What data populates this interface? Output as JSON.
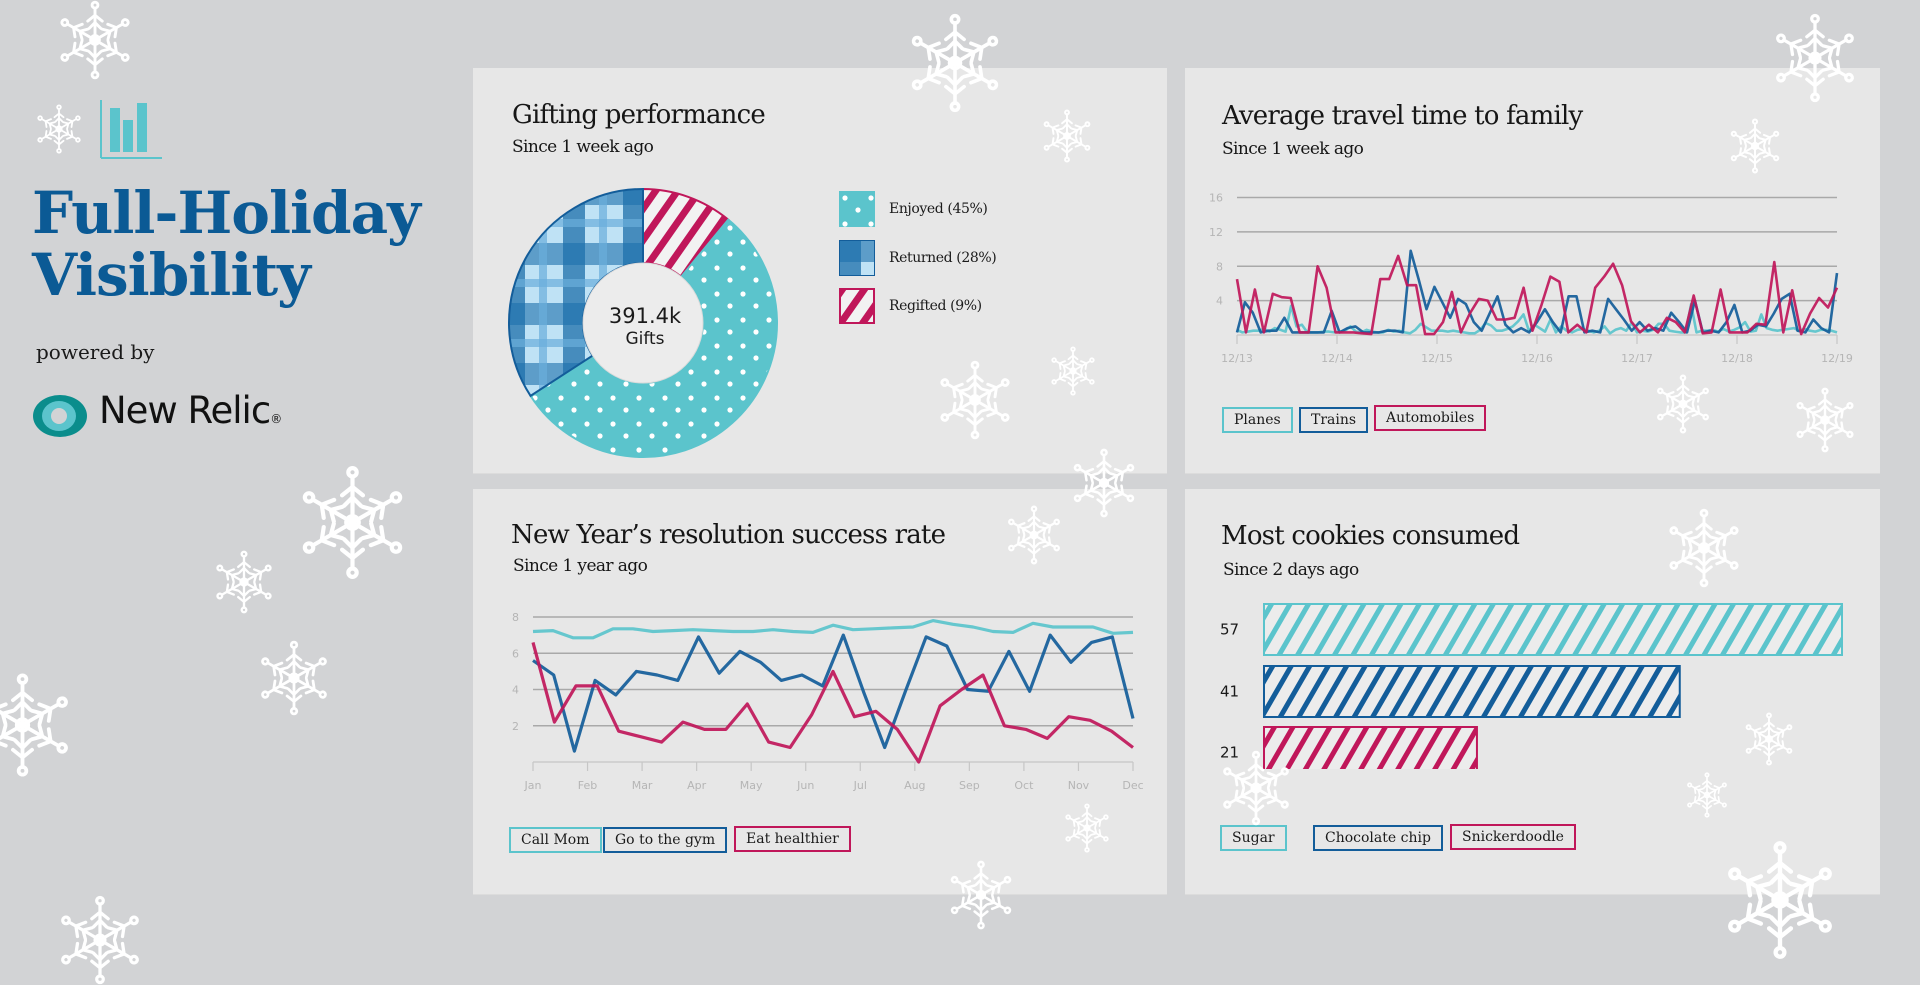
{
  "brand": {
    "title_line1": "Full-Holiday",
    "title_line2": "Visibility",
    "powered_by": "powered by",
    "logo_text": "New Relic",
    "logo_mark": "®",
    "colors": {
      "primary": "#0b5a95",
      "teal": "#5bc4cc",
      "blue": "#135d9a",
      "red": "#c0175a"
    }
  },
  "panels": {
    "gifting": {
      "title": "Gifting performance",
      "subtitle": "Since 1 week ago",
      "center_value": "391.4k",
      "center_label": "Gifts",
      "legend": [
        {
          "label": "Enjoyed (45%)",
          "color": "#5bc4cc",
          "pattern": "polka-dots"
        },
        {
          "label": "Returned (28%)",
          "color": "#135d9a",
          "pattern": "plaid"
        },
        {
          "label": "Regifted (9%)",
          "color": "#c0175a",
          "pattern": "stripes"
        }
      ]
    },
    "travel": {
      "title": "Average travel time to family",
      "subtitle": "Since 1 week ago",
      "legend": [
        "Planes",
        "Trains",
        "Automobiles"
      ]
    },
    "resolutions": {
      "title": "New Year’s resolution success rate",
      "subtitle": "Since 1 year ago",
      "legend": [
        "Call Mom",
        "Go to the gym",
        "Eat healthier"
      ]
    },
    "cookies": {
      "title": "Most cookies consumed",
      "subtitle": "Since 2 days ago",
      "legend": [
        "Sugar",
        "Chocolate chip",
        "Snickerdoodle"
      ]
    }
  },
  "chart_data": [
    {
      "type": "pie",
      "title": "Gifting performance",
      "subtitle": "Since 1 week ago",
      "categories": [
        "Enjoyed",
        "Returned",
        "Regifted"
      ],
      "values": [
        45,
        28,
        9
      ],
      "unit": "%",
      "center_text": "391.4k Gifts",
      "legend_position": "right"
    },
    {
      "type": "line",
      "title": "Average travel time to family",
      "subtitle": "Since 1 week ago",
      "x_ticks": [
        "12/13",
        "12/14",
        "12/15",
        "12/16",
        "12/17",
        "12/18",
        "12/19"
      ],
      "y_ticks": [
        4,
        8,
        12,
        16
      ],
      "ylim": [
        0,
        16
      ],
      "grid": true,
      "legend_position": "bottom-left",
      "series": [
        {
          "name": "Planes",
          "color": "#5bc4cc",
          "values": [
            0.6,
            0.3,
            0.4,
            0.5,
            0.5,
            0.7,
            0.4,
            0.8,
            0.6,
            0.4,
            3.4,
            1.0,
            1.2,
            0.3,
            0.3,
            0.3,
            0.4,
            0.4,
            0.3,
            0.4,
            0.5,
            1.0,
            0.4,
            0.3,
            0.6,
            0.4,
            0.3,
            0.3,
            0.6,
            0.4,
            0.5,
            0.3,
            0.2,
            0.6,
            1.3,
            0.9,
            0.5,
            0.5,
            0.5,
            0.4,
            0.5,
            0.4,
            0.3,
            0.2,
            0.2,
            0.6,
            1.4,
            1.1,
            0.5,
            0.5,
            0.7,
            1.0,
            1.6,
            2.4,
            0.5,
            1.2,
            0.8,
            0.4,
            1.8,
            0.3,
            1.0,
            0.5,
            0.3,
            0.6,
            0.7,
            0.5,
            0.3,
            0.5,
            1.0,
            0.2,
            0.6,
            0.8,
            0.5,
            1.4,
            0.3,
            0.5,
            0.4,
            0.6,
            1.3,
            1.3,
            0.5,
            0.4,
            0.3,
            0.3,
            3.6,
            0.3,
            0.5,
            0.5,
            0.6,
            0.4,
            0.7,
            0.4,
            0.6,
            0.9,
            1.5,
            0.4,
            0.5,
            2.4,
            0.8,
            0.6,
            0.5,
            0.6,
            0.7,
            0.8,
            0.5,
            0.7,
            0.5,
            0.4,
            0.6,
            0.6,
            0.5,
            0.3
          ]
        },
        {
          "name": "Trains",
          "color": "#135d9a",
          "values": [
            0.3,
            3.8,
            2.6,
            0.3,
            0.5,
            0.5,
            2.0,
            0.3,
            0.3,
            0.3,
            0.3,
            0.3,
            2.8,
            0.3,
            0.8,
            1.0,
            0.3,
            0.3,
            0.3,
            0.5,
            0.5,
            0.3,
            9.8,
            6.5,
            3.0,
            5.6,
            3.8,
            2.0,
            4.2,
            3.6,
            1.5,
            0.5,
            2.5,
            4.5,
            1.2,
            0.3,
            0.8,
            0.3,
            1.5,
            3.0,
            1.5,
            0.3,
            4.5,
            4.5,
            0.3,
            0.5,
            0.3,
            4.2,
            3.0,
            1.8,
            0.5,
            1.5,
            0.5,
            0.8,
            0.5,
            2.6,
            1.5,
            0.3,
            4.0,
            0.3,
            0.5,
            0.3,
            1.5,
            3.5,
            0.3,
            0.5,
            1.2,
            1.0,
            2.5,
            4.2,
            4.8,
            0.5,
            0.3,
            1.8,
            0.8,
            0.3,
            7.2
          ]
        },
        {
          "name": "Automobiles",
          "color": "#c0175a",
          "values": [
            6.5,
            0.3,
            5.3,
            0.3,
            4.8,
            4.4,
            4.3,
            0.3,
            0.3,
            8.0,
            5.5,
            0.3,
            0.3,
            0.3,
            0.2,
            0.1,
            6.5,
            6.5,
            9.2,
            5.8,
            5.8,
            0.1,
            0.1,
            1.5,
            5.0,
            0.3,
            2.5,
            4.2,
            4.0,
            1.8,
            1.8,
            2.0,
            5.5,
            0.5,
            3.5,
            6.8,
            6.2,
            0.3,
            1.2,
            0.3,
            5.5,
            6.8,
            8.3,
            5.8,
            1.6,
            0.3,
            1.2,
            0.3,
            2.0,
            1.5,
            0.3,
            4.6,
            0.2,
            0.3,
            5.3,
            0.3,
            0.3,
            0.3,
            1.3,
            1.2,
            8.5,
            0.3,
            5.2,
            0.1,
            2.5,
            4.3,
            3.2,
            5.5
          ]
        }
      ]
    },
    {
      "type": "line",
      "title": "New Year’s resolution success rate",
      "subtitle": "Since 1 year ago",
      "x_ticks": [
        "Jan",
        "Feb",
        "Mar",
        "Apr",
        "May",
        "Jun",
        "Jul",
        "Aug",
        "Sep",
        "Oct",
        "Nov",
        "Dec"
      ],
      "y_ticks": [
        2,
        4,
        6,
        8
      ],
      "ylim": [
        0,
        8
      ],
      "grid": true,
      "legend_position": "bottom-left",
      "series": [
        {
          "name": "Call Mom",
          "color": "#5bc4cc",
          "values": [
            7.2,
            7.25,
            6.85,
            6.85,
            7.35,
            7.35,
            7.2,
            7.25,
            7.3,
            7.25,
            7.2,
            7.2,
            7.3,
            7.2,
            7.15,
            7.55,
            7.3,
            7.35,
            7.4,
            7.45,
            7.8,
            7.6,
            7.45,
            7.2,
            7.15,
            7.65,
            7.45,
            7.45,
            7.45,
            7.1,
            7.15
          ]
        },
        {
          "name": "Go to the gym",
          "color": "#135d9a",
          "values": [
            5.6,
            4.8,
            0.6,
            4.5,
            3.7,
            5.0,
            4.8,
            4.5,
            6.9,
            4.9,
            6.1,
            5.5,
            4.5,
            4.8,
            4.2,
            7.0,
            3.8,
            0.8,
            3.9,
            6.9,
            6.4,
            4.0,
            3.9,
            6.1,
            3.9,
            7.0,
            5.5,
            6.6,
            6.9,
            2.4
          ]
        },
        {
          "name": "Eat healthier",
          "color": "#c0175a",
          "values": [
            6.6,
            2.2,
            4.2,
            4.2,
            1.7,
            1.4,
            1.1,
            2.2,
            1.8,
            1.8,
            3.2,
            1.1,
            0.8,
            2.6,
            5.0,
            2.5,
            2.8,
            1.8,
            0.0,
            3.1,
            4.0,
            4.8,
            2.0,
            1.8,
            1.3,
            2.5,
            2.3,
            1.7,
            0.8
          ]
        }
      ]
    },
    {
      "type": "bar",
      "orientation": "horizontal",
      "title": "Most cookies consumed",
      "subtitle": "Since 2 days ago",
      "categories": [
        "Sugar",
        "Chocolate chip",
        "Snickerdoodle"
      ],
      "values": [
        57,
        41,
        21
      ],
      "colors": [
        "#5bc4cc",
        "#135d9a",
        "#c0175a"
      ],
      "xlim": [
        0,
        57
      ],
      "legend_position": "bottom-left"
    }
  ]
}
